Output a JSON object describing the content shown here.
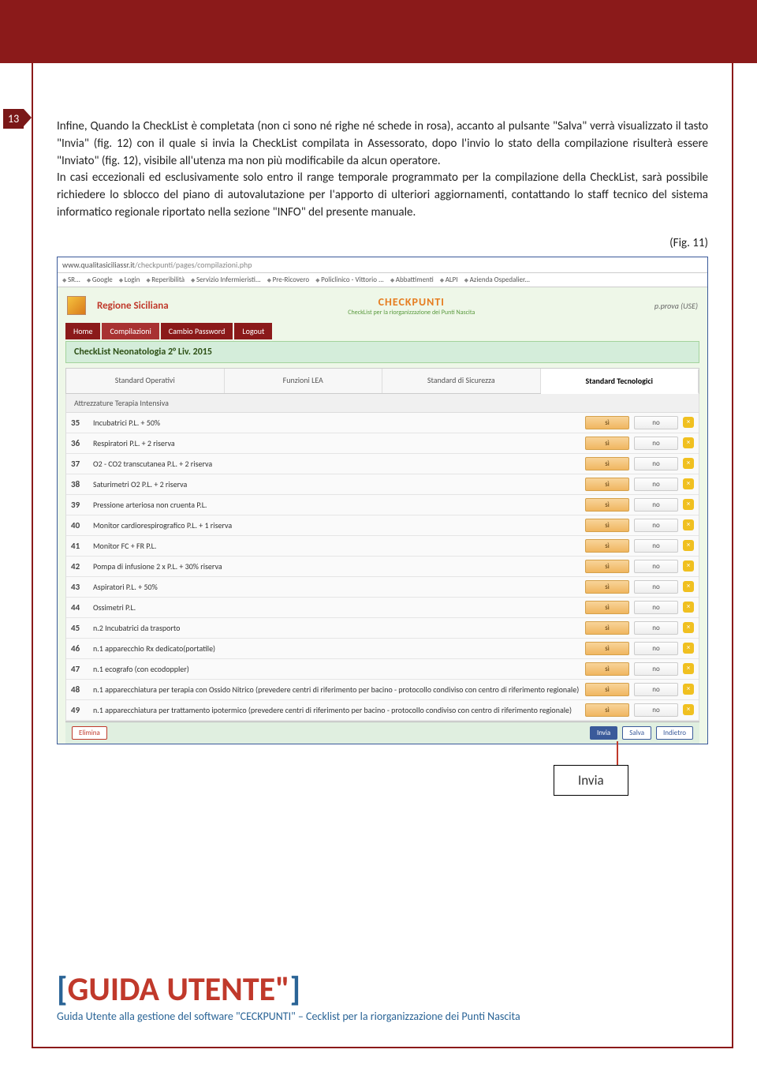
{
  "page_number": "13",
  "paragraph": "Infine, Quando la CheckList è completata (non ci sono né righe né schede in rosa), accanto al pulsante \"Salva\" verrà visualizzato il tasto \"Invia\" (fig. 12) con il quale si invia la CheckList compilata in Assessorato, dopo l'invio lo stato della compilazione risulterà essere \"Inviato\" (fig. 12), visibile all'utenza ma non più modificabile da alcun operatore.\nIn casi eccezionali ed esclusivamente solo entro il range temporale programmato per la compilazione della CheckList, sarà possibile richiedere lo sblocco del piano di autovalutazione per l'apporto di ulteriori aggiornamenti, contattando lo staff tecnico del sistema informatico regionale riportato nella sezione \"INFO\" del presente manuale.",
  "figure_label": "(Fig. 11)",
  "screenshot": {
    "url_host": "www.qualitasiciliassr.it",
    "url_path": "/checkpunti/pages/compilazioni.php",
    "bookmarks": [
      "SR...",
      "Google",
      "Login",
      "Reperibilità",
      "Servizio Infermieristi...",
      "Pre-Ricovero",
      "Policlinico - Vittorio ...",
      "Abbattimenti",
      "ALPI",
      "Azienda Ospedalier..."
    ],
    "region_label": "Regione Siciliana",
    "app_title": "CHECKPUNTI",
    "app_subtitle": "CheckList per la riorganizzazione dei Punti Nascita",
    "user_label": "p.prova (USE)",
    "nav": {
      "items": [
        "Home",
        "Compilazioni",
        "Cambio Password",
        "Logout"
      ],
      "active_index": 1
    },
    "panel_title": "CheckList Neonatologia 2° Liv. 2015",
    "tabs": {
      "items": [
        "Standard Operativi",
        "Funzioni LEA",
        "Standard di Sicurezza",
        "Standard Tecnologici"
      ],
      "active_index": 3
    },
    "subheader": "Attrezzature Terapia Intensiva",
    "row_button_yes": "sì",
    "row_button_no": "no",
    "rows": [
      {
        "n": "35",
        "label": "Incubatrici P.L. + 50%"
      },
      {
        "n": "36",
        "label": "Respiratori P.L. + 2 riserva"
      },
      {
        "n": "37",
        "label": "O2 - CO2 transcutanea P.L. + 2 riserva"
      },
      {
        "n": "38",
        "label": "Saturimetri O2 P.L. + 2 riserva"
      },
      {
        "n": "39",
        "label": "Pressione arteriosa non cruenta P.L."
      },
      {
        "n": "40",
        "label": "Monitor cardiorespirografico P.L. + 1 riserva"
      },
      {
        "n": "41",
        "label": "Monitor FC + FR P.L."
      },
      {
        "n": "42",
        "label": "Pompa di infusione 2 x P.L. + 30% riserva"
      },
      {
        "n": "43",
        "label": "Aspiratori P.L. + 50%"
      },
      {
        "n": "44",
        "label": "Ossimetri P.L."
      },
      {
        "n": "45",
        "label": "n.2 Incubatrici da trasporto"
      },
      {
        "n": "46",
        "label": "n.1 apparecchio Rx dedicato(portatile)"
      },
      {
        "n": "47",
        "label": "n.1 ecografo (con ecodoppler)"
      },
      {
        "n": "48",
        "label": "n.1 apparecchiatura per terapia con Ossido Nitrico (prevedere centri di riferimento per bacino - protocollo condiviso con centro di riferimento regionale)"
      },
      {
        "n": "49",
        "label": "n.1 apparecchiatura per trattamento ipotermico (prevedere centri di riferimento per bacino - protocollo condiviso con centro di riferimento regionale)"
      }
    ],
    "footer_buttons": {
      "elimina": "Elimina",
      "invia": "Invia",
      "salva": "Salva",
      "indietro": "Indietro"
    }
  },
  "callout_label": "Invia",
  "guide_title": "GUIDA UTENTE\"",
  "guide_subtitle": "Guida Utente alla gestione del software \"CECKPUNTI\" – Cecklist per la riorganizzazione dei Punti Nascita",
  "colors": {
    "dark_red": "#8b1a1a",
    "blue": "#2a6496",
    "orange": "#e67e22",
    "green_panel": "#d4edda"
  }
}
